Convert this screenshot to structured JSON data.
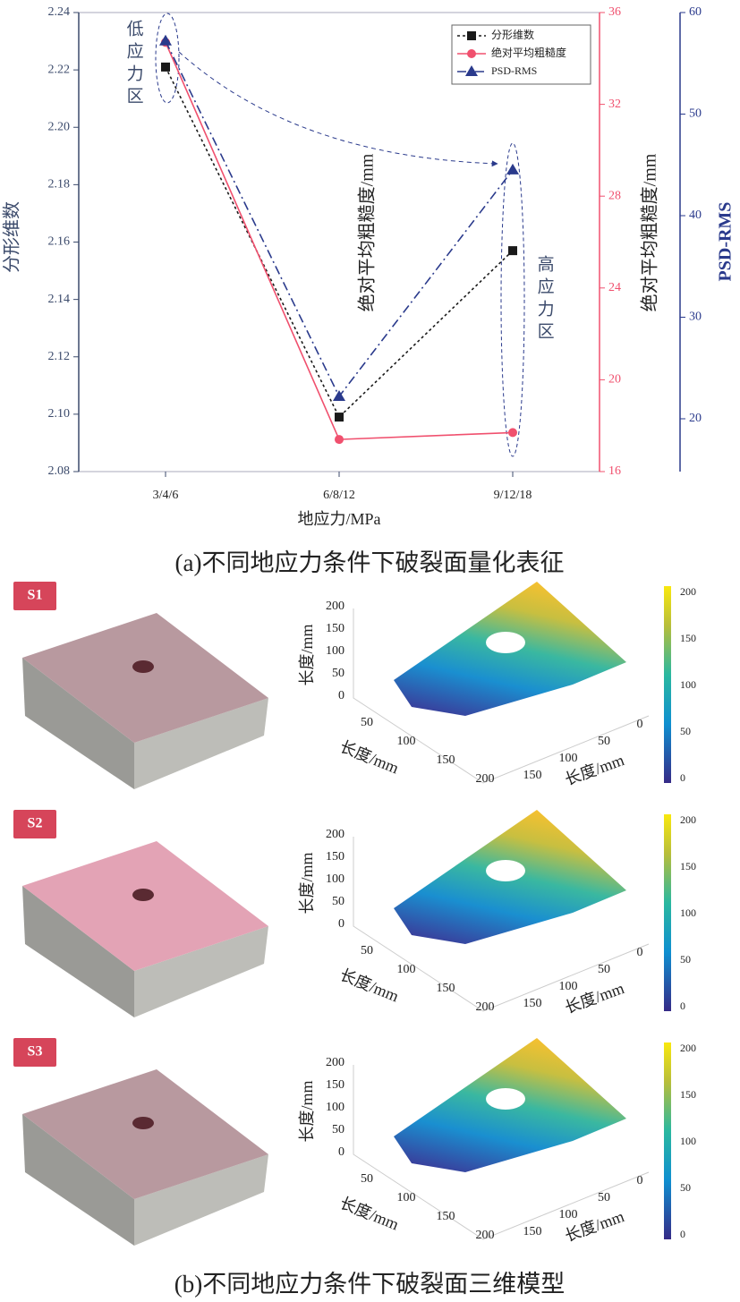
{
  "chart_data": {
    "type": "line",
    "x_label": "地应力/MPa",
    "y_label": "分形维数",
    "y2_label": "绝对平均粗糙度/mm",
    "y3_label": "PSD-RMS",
    "categories": [
      "3/4/6",
      "6/8/12",
      "9/12/18"
    ],
    "series": [
      {
        "name": "分形维数",
        "color": "#1a1a1a",
        "marker": "square",
        "line_style": "dotted",
        "values": [
          2.221,
          2.099,
          2.157
        ]
      },
      {
        "name": "绝对平均粗糙度",
        "color": "#f0506e",
        "marker": "circle",
        "line_style": "solid",
        "axis": "y2",
        "values": [
          34.7,
          17.4,
          17.7
        ]
      },
      {
        "name": "PSD-RMS",
        "color": "#2a3a8c",
        "marker": "triangle",
        "line_style": "dashdot",
        "axis": "y3",
        "values": [
          57.2,
          22.2,
          44.5
        ]
      }
    ],
    "ylim": [
      2.08,
      2.24
    ],
    "yticks": [
      2.08,
      {
        "value": 2.1,
        "label": "2.10"
      },
      2.12,
      2.14,
      2.16,
      2.18,
      {
        "value": 2.2,
        "label": "2.20"
      },
      2.22,
      2.24
    ],
    "y2lim": [
      16,
      36
    ],
    "y2ticks": [
      16,
      20,
      24,
      28,
      32,
      36
    ],
    "y3lim": [
      14.8,
      60
    ],
    "y3ticks": [
      20,
      30,
      40,
      50,
      60
    ],
    "legend": "upper right",
    "annotations": [
      "低应力区",
      "绝对平均粗糙度/mm",
      "高应力区"
    ]
  },
  "panel_a_caption": "(a)不同地应力条件下破裂面量化表征",
  "panel_b": {
    "caption": "(b)不同地应力条件下破裂面三维模型",
    "samples": [
      "S1",
      "S2",
      "S3"
    ],
    "axis_label": "长度/mm",
    "z_ticks": [
      0,
      50,
      100,
      150,
      200
    ],
    "x_ticks": [
      50,
      100,
      150,
      200
    ],
    "y_ticks": [
      0,
      50,
      100,
      150
    ],
    "colorbar_ticks": [
      0,
      50,
      100,
      150,
      200
    ]
  }
}
